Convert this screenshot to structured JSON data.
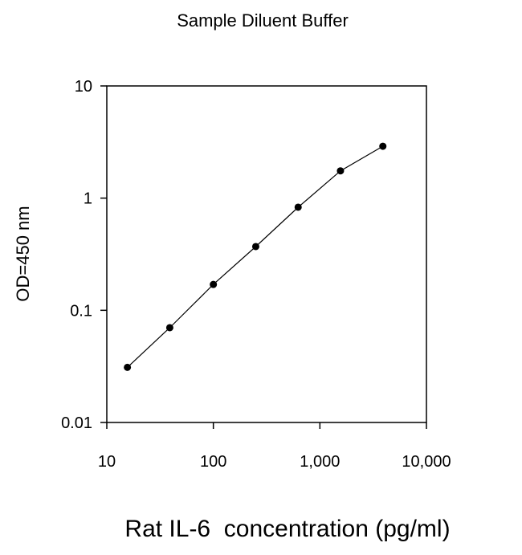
{
  "chart_data": {
    "type": "line",
    "title": "Sample Diluent Buffer",
    "xlabel": "Rat IL-6  concentration (pg/ml)",
    "ylabel": "OD=450 nm",
    "x_scale": "log",
    "y_scale": "log",
    "xlim": [
      10,
      10000
    ],
    "ylim": [
      0.01,
      10
    ],
    "x_ticks": [
      10,
      100,
      1000,
      10000
    ],
    "x_tick_labels": [
      "10",
      "100",
      "1,000",
      "10,000"
    ],
    "y_ticks": [
      0.01,
      0.1,
      1,
      10
    ],
    "y_tick_labels": [
      "0.01",
      "0.1",
      "1",
      "10"
    ],
    "grid": false,
    "series": [
      {
        "x": [
          15.6,
          39,
          100,
          250,
          625,
          1560,
          3900
        ],
        "y": [
          0.031,
          0.07,
          0.17,
          0.37,
          0.83,
          1.75,
          2.9
        ],
        "color": "#000000",
        "marker": "circle"
      }
    ]
  }
}
